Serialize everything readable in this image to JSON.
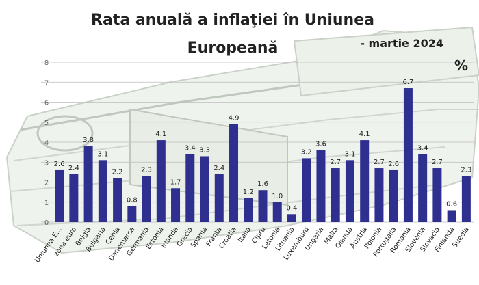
{
  "chart_data": {
    "type": "bar",
    "title": "Rata anuală a inflaţiei în Uniunea Europeană",
    "title_line1": "Rata anuală a inflaţiei în Uniunea",
    "title_line2": "Europeană",
    "subtitle": "- martie 2024",
    "unit": "%",
    "xlabel": "",
    "ylabel": "",
    "ylim": [
      0,
      8
    ],
    "yticks": [
      "0",
      "1",
      "2",
      "3",
      "4",
      "5",
      "6",
      "7",
      "8"
    ],
    "grid": true,
    "bar_color": "#2f2f8f",
    "categories": [
      "Uniunea E…",
      "zona euro",
      "Belgia",
      "Bulgaria",
      "Cehia",
      "Danemarca",
      "Germania",
      "Estonia",
      "Irlanda",
      "Grecia",
      "Spania",
      "Franta",
      "Croatia",
      "Italia",
      "Cipru",
      "Letonia",
      "Lituania",
      "Luxemburg",
      "Ungaria",
      "Malta",
      "Olanda",
      "Austria",
      "Polonia",
      "Portugalia",
      "Romania",
      "Slovenia",
      "Slovacia",
      "Finlanda",
      "Suedia"
    ],
    "values": [
      2.6,
      2.4,
      3.8,
      3.1,
      2.2,
      0.8,
      2.3,
      4.1,
      1.7,
      3.4,
      3.3,
      2.4,
      4.9,
      1.2,
      1.6,
      1.0,
      0.4,
      3.2,
      3.6,
      2.7,
      3.1,
      4.1,
      2.7,
      2.6,
      6.7,
      3.4,
      2.7,
      0.6,
      2.3
    ],
    "value_labels": [
      "2.6",
      "2.4",
      "3.8",
      "3.1",
      "2.2",
      "0.8",
      "2.3",
      "4.1",
      "1.7",
      "3.4",
      "3.3",
      "2.4",
      "4.9",
      "1.2",
      "1.6",
      "1.0",
      "0.4",
      "3.2",
      "3.6",
      "2.7",
      "3.1",
      "4.1",
      "2.7",
      "2.6",
      "6.7",
      "3.4",
      "2.7",
      "0.6",
      "2.3"
    ]
  }
}
